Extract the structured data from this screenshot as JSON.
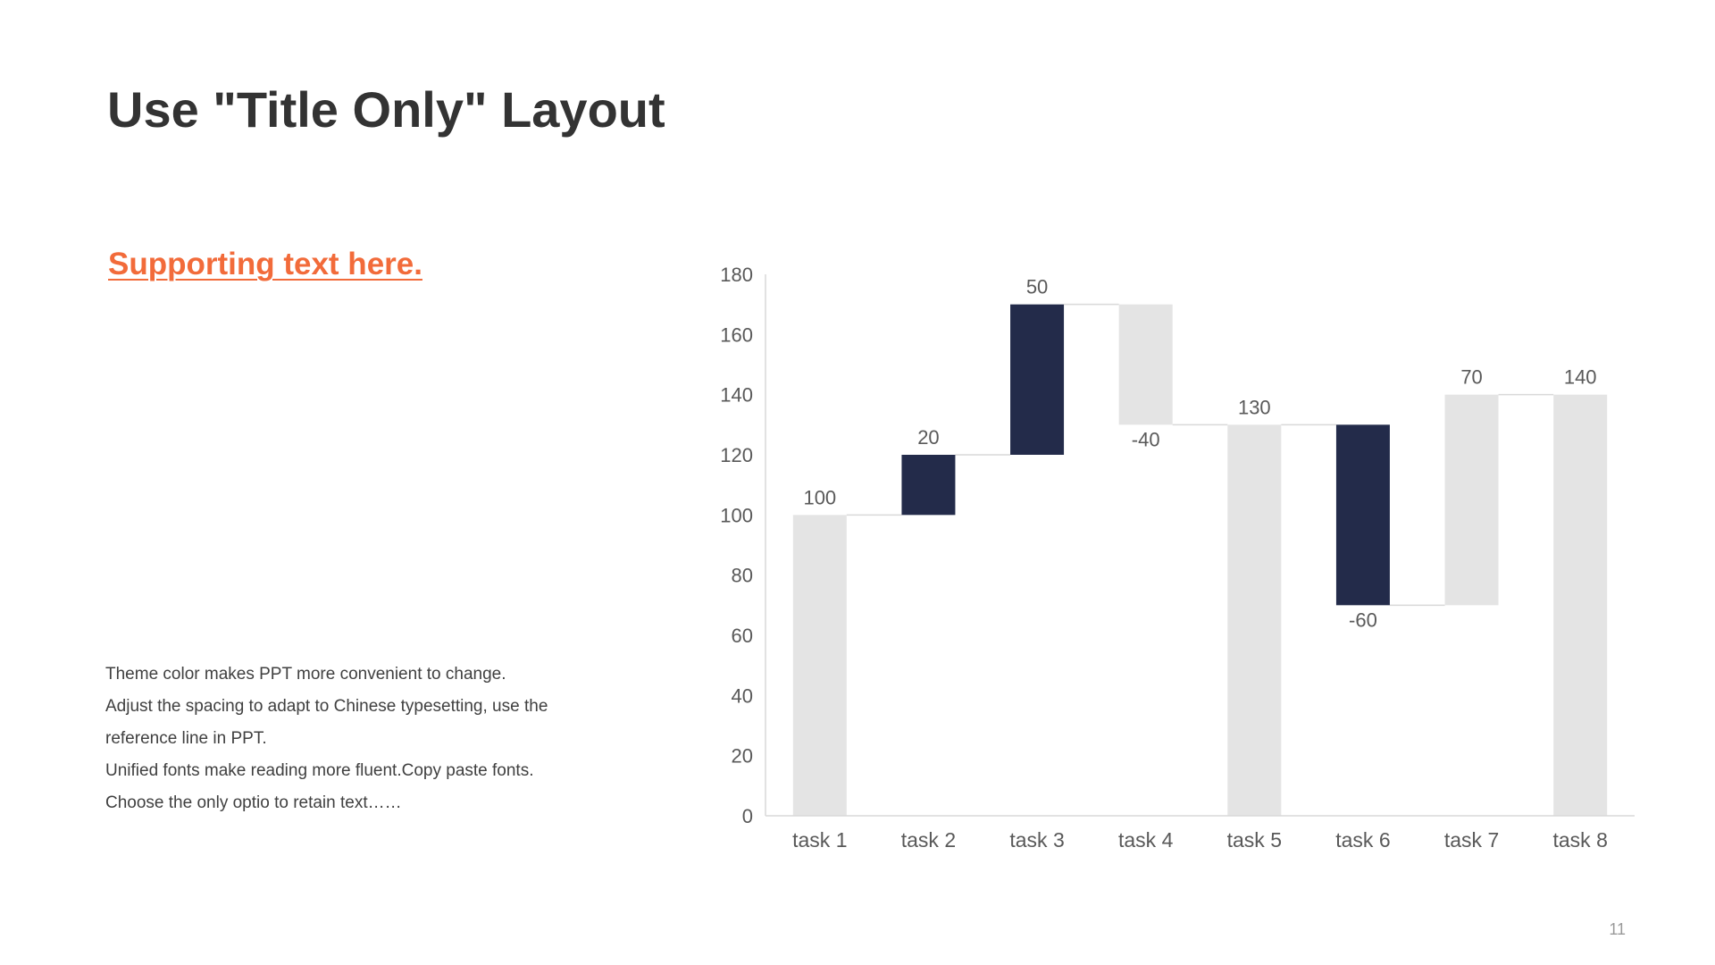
{
  "slide": {
    "title": "Use \"Title Only\" Layout",
    "supporting_text": "Supporting text here.",
    "body_lines": [
      "Theme  color makes PPT more convenient  to change.",
      "Adjust the spacing to adapt to Chinese typesetting, use the",
      "reference line in PPT.",
      "Unified  fonts make reading more fluent.Copy paste fonts.",
      "Choose the only optio to retain text……"
    ],
    "page_number": "11"
  },
  "colors": {
    "title": "#333333",
    "accent": "#f26b3a",
    "bar_total": "#e4e4e4",
    "bar_change": "#232b4a",
    "axis_text": "#595959",
    "connector": "#d9d9d9"
  },
  "chart_data": {
    "type": "bar",
    "subtype": "waterfall",
    "categories": [
      "task 1",
      "task 2",
      "task 3",
      "task 4",
      "task 5",
      "task 6",
      "task 7",
      "task 8"
    ],
    "bars": [
      {
        "category": "task 1",
        "base": 0,
        "top": 100,
        "label": "100",
        "style": "total"
      },
      {
        "category": "task 2",
        "base": 100,
        "top": 120,
        "label": "20",
        "style": "change"
      },
      {
        "category": "task 3",
        "base": 120,
        "top": 170,
        "label": "50",
        "style": "change"
      },
      {
        "category": "task 4",
        "base": 130,
        "top": 170,
        "label": "-40",
        "style": "total"
      },
      {
        "category": "task 5",
        "base": 0,
        "top": 130,
        "label": "130",
        "style": "total"
      },
      {
        "category": "task 6",
        "base": 70,
        "top": 130,
        "label": "-60",
        "style": "change"
      },
      {
        "category": "task 7",
        "base": 70,
        "top": 140,
        "label": "70",
        "style": "total"
      },
      {
        "category": "task 8",
        "base": 0,
        "top": 140,
        "label": "140",
        "style": "total"
      }
    ],
    "ylim": [
      0,
      180
    ],
    "yticks": [
      0,
      20,
      40,
      60,
      80,
      100,
      120,
      140,
      160,
      180
    ],
    "grid": false,
    "legend": "none",
    "connectors": true,
    "title": "",
    "xlabel": "",
    "ylabel": ""
  }
}
